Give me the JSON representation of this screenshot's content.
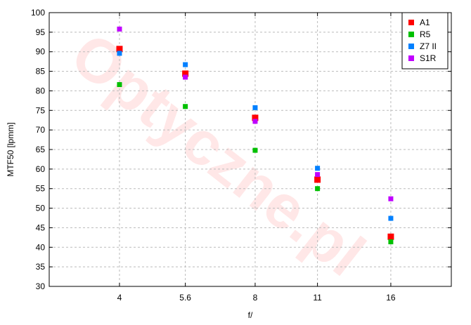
{
  "watermark": "Optyczne.pl",
  "chart_data": {
    "type": "scatter",
    "title": "",
    "xlabel": "f/",
    "ylabel": "MTF50 [lpmm]",
    "x_scale": "log2",
    "categories": [
      "4",
      "5.6",
      "8",
      "11",
      "16"
    ],
    "x": [
      4,
      5.6,
      8,
      11,
      16
    ],
    "ylim": [
      30,
      100
    ],
    "yticks": [
      30,
      35,
      40,
      45,
      50,
      55,
      60,
      65,
      70,
      75,
      80,
      85,
      90,
      95,
      100
    ],
    "grid": true,
    "legend_position": "top-right",
    "series": [
      {
        "name": "A1",
        "color": "#ff0000",
        "values": [
          90.7,
          84.4,
          73.1,
          57.3,
          42.7
        ]
      },
      {
        "name": "R5",
        "color": "#00c000",
        "values": [
          81.6,
          76.0,
          64.8,
          55.0,
          41.4
        ]
      },
      {
        "name": "Z7 II",
        "color": "#0080ff",
        "values": [
          89.6,
          86.7,
          75.7,
          60.2,
          47.4
        ]
      },
      {
        "name": "S1R",
        "color": "#c000ff",
        "values": [
          95.8,
          83.5,
          72.2,
          58.6,
          52.4
        ]
      }
    ]
  }
}
